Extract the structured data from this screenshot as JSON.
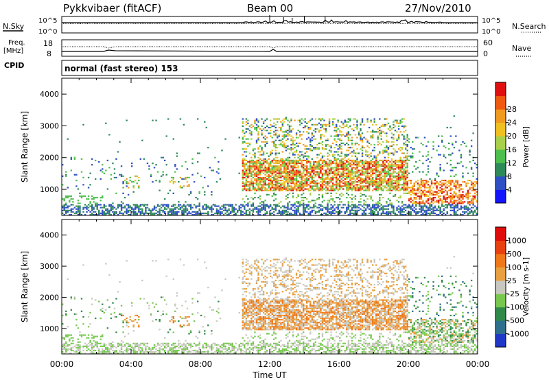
{
  "header": {
    "radar": "Pykkvibaer (fitACF)",
    "beam": "Beam 00",
    "date": "27/Nov/2010"
  },
  "top_panels": {
    "nsky_label": "N.Sky",
    "nsky_top": "10^5",
    "nsky_bottom": "10^0",
    "nsearch_label": "N.Search",
    "nsearch_top": "10^5",
    "nsearch_bottom": "10^0",
    "freq_label": "Freq.",
    "freq_unit": "[MHz]",
    "freq_top": "18",
    "freq_bottom": "8",
    "nave_label": "Nave",
    "nave_top": "60",
    "nave_bottom": "0",
    "cpid_label": "CPID",
    "cpid_text": "normal (fast stereo) 153"
  },
  "chart_data": [
    {
      "type": "heatmap",
      "quantity": "Power",
      "ylabel": "Slant Range [km]",
      "xlabel": "Time UT",
      "xlim_hours": [
        0,
        24
      ],
      "ylim_km": [
        180,
        4500
      ],
      "y_ticks": [
        1000,
        2000,
        3000,
        4000
      ],
      "x_ticks": [
        "00:00",
        "04:00",
        "08:00",
        "12:00",
        "16:00",
        "20:00",
        "00:00"
      ],
      "colorbar": {
        "label": "Power [dB]",
        "ticks": [
          "4",
          "8",
          "12",
          "16",
          "20",
          "24",
          "28"
        ],
        "colors": [
          "#1414ff",
          "#2f4fc4",
          "#2f8a5a",
          "#4cbf4c",
          "#a8d04a",
          "#f0c020",
          "#f09a20",
          "#f05a10",
          "#e01010"
        ]
      }
    },
    {
      "type": "heatmap",
      "quantity": "Velocity",
      "ylabel": "Slant Range [km]",
      "xlabel": "Time UT",
      "xlim_hours": [
        0,
        24
      ],
      "ylim_km": [
        180,
        4500
      ],
      "y_ticks": [
        1000,
        2000,
        3000,
        4000
      ],
      "x_ticks": [
        "00:00",
        "04:00",
        "08:00",
        "12:00",
        "16:00",
        "20:00",
        "00:00"
      ],
      "colorbar": {
        "label": "Velocity [m s-1]",
        "ticks": [
          "1000",
          "500",
          "100",
          "25",
          "-25",
          "-100",
          "-500",
          "-1000"
        ],
        "colors": [
          "#2038c8",
          "#2e6f8e",
          "#2f8a4a",
          "#78c850",
          "#c8c8c0",
          "#e8a040",
          "#f07818",
          "#e84010",
          "#e00c0c"
        ]
      }
    }
  ]
}
